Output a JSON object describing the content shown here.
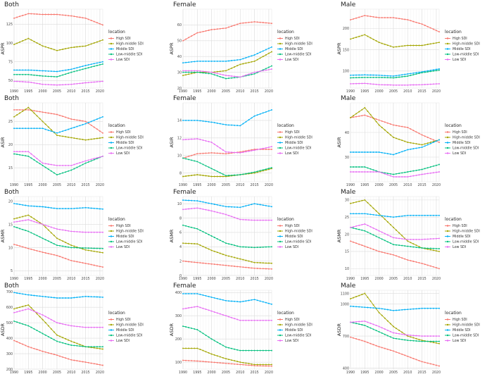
{
  "figure": {
    "legend_title": "location"
  },
  "locations": [
    "High SDI",
    "High-middle SDI",
    "Middle SDI",
    "Low-middle SDI",
    "Low SDI"
  ],
  "colors": {
    "High SDI": "#F8766D",
    "High-middle SDI": "#A3A500",
    "Middle SDI": "#00B0F6",
    "Low-middle SDI": "#00BF7D",
    "Low SDI": "#E76BF3"
  },
  "chart_data": [
    {
      "type": "line",
      "title": "Both",
      "ylabel": "ASPR",
      "xlim": [
        1990,
        2021
      ],
      "ylim": [
        40,
        145
      ],
      "xticks": [
        1990,
        1995,
        2000,
        2005,
        2010,
        2015,
        2020
      ],
      "yticks": [
        50,
        75,
        100,
        125
      ],
      "x": [
        1990,
        1995,
        2000,
        2005,
        2010,
        2015,
        2021
      ],
      "series": [
        {
          "name": "High SDI",
          "values": [
            133,
            139,
            138,
            138,
            136,
            133,
            124
          ]
        },
        {
          "name": "High-middle SDI",
          "values": [
            98,
            106,
            96,
            90,
            94,
            96,
            104
          ]
        },
        {
          "name": "Middle SDI",
          "values": [
            64,
            64,
            63,
            62,
            65,
            70,
            75
          ]
        },
        {
          "name": "Low-middle SDI",
          "values": [
            58,
            58,
            56,
            55,
            61,
            66,
            72
          ]
        },
        {
          "name": "Low SDI",
          "values": [
            49,
            48,
            45,
            44,
            45,
            47,
            49
          ]
        }
      ]
    },
    {
      "type": "line",
      "title": "Female",
      "ylabel": "ASPR",
      "xlim": [
        1990,
        2021
      ],
      "ylim": [
        20,
        70
      ],
      "xticks": [
        1990,
        1995,
        2000,
        2005,
        2010,
        2015,
        2020
      ],
      "yticks": [
        20,
        30,
        40,
        50,
        60
      ],
      "x": [
        1990,
        1995,
        2000,
        2005,
        2010,
        2015,
        2021
      ],
      "series": [
        {
          "name": "High SDI",
          "values": [
            50,
            55,
            57,
            58,
            61,
            62,
            61
          ]
        },
        {
          "name": "High-middle SDI",
          "values": [
            28,
            30,
            30,
            31,
            35,
            37,
            43
          ]
        },
        {
          "name": "Middle SDI",
          "values": [
            36,
            37,
            37,
            37,
            38,
            41,
            46
          ]
        },
        {
          "name": "Low-middle SDI",
          "values": [
            30,
            30,
            29,
            26,
            27,
            29,
            34
          ]
        },
        {
          "name": "Low SDI",
          "values": [
            31,
            31,
            30,
            28,
            27,
            30,
            32
          ]
        }
      ]
    },
    {
      "type": "line",
      "title": "Male",
      "ylabel": "ASPR",
      "xlim": [
        1990,
        2021
      ],
      "ylim": [
        60,
        245
      ],
      "xticks": [
        1990,
        1995,
        2000,
        2005,
        2010,
        2015,
        2020
      ],
      "yticks": [
        100,
        150,
        200
      ],
      "x": [
        1990,
        1995,
        2000,
        2005,
        2010,
        2015,
        2021
      ],
      "series": [
        {
          "name": "High SDI",
          "values": [
            220,
            230,
            225,
            225,
            220,
            210,
            192
          ]
        },
        {
          "name": "High-middle SDI",
          "values": [
            175,
            185,
            167,
            156,
            160,
            160,
            167
          ]
        },
        {
          "name": "Middle SDI",
          "values": [
            90,
            91,
            90,
            88,
            93,
            98,
            105
          ]
        },
        {
          "name": "Low-middle SDI",
          "values": [
            84,
            85,
            85,
            84,
            88,
            96,
            102
          ]
        },
        {
          "name": "Low SDI",
          "values": [
            70,
            71,
            68,
            67,
            67,
            68,
            70
          ]
        }
      ]
    },
    {
      "type": "line",
      "title": "Both",
      "ylabel": "ASIR",
      "xlim": [
        1990,
        2021
      ],
      "ylim": [
        12,
        29
      ],
      "xticks": [
        1990,
        1995,
        2000,
        2005,
        2010,
        2015,
        2020
      ],
      "yticks": [
        15,
        20,
        25
      ],
      "x": [
        1990,
        1995,
        2000,
        2005,
        2010,
        2015,
        2021
      ],
      "series": [
        {
          "name": "High SDI",
          "values": [
            27.5,
            27.5,
            27,
            26.5,
            25.5,
            25,
            22.5
          ]
        },
        {
          "name": "High-middle SDI",
          "values": [
            26,
            28,
            25,
            22,
            21.5,
            21,
            21.5
          ]
        },
        {
          "name": "Middle SDI",
          "values": [
            23.5,
            23.5,
            23.5,
            22.5,
            23.5,
            24.5,
            26
          ]
        },
        {
          "name": "Low-middle SDI",
          "values": [
            18,
            17.5,
            15.5,
            13.5,
            14.5,
            16,
            17.5
          ]
        },
        {
          "name": "Low SDI",
          "values": [
            18.5,
            18.5,
            16,
            15.5,
            15.5,
            16.5,
            17.5
          ]
        }
      ]
    },
    {
      "type": "line",
      "title": "Female",
      "ylabel": "ASIR",
      "xlim": [
        1990,
        2021
      ],
      "ylim": [
        7,
        16
      ],
      "xticks": [
        1990,
        1995,
        2000,
        2005,
        2010,
        2015,
        2020
      ],
      "yticks": [
        8,
        10,
        12,
        14
      ],
      "x": [
        1990,
        1995,
        2000,
        2005,
        2010,
        2015,
        2021
      ],
      "series": [
        {
          "name": "High SDI",
          "values": [
            9.7,
            10.2,
            10.3,
            10.2,
            10.4,
            10.7,
            10.7
          ]
        },
        {
          "name": "High-middle SDI",
          "values": [
            7.6,
            7.8,
            7.6,
            7.6,
            7.8,
            8,
            8.5
          ]
        },
        {
          "name": "Middle SDI",
          "values": [
            14,
            14,
            13.8,
            13.5,
            13.4,
            14.5,
            15.2
          ]
        },
        {
          "name": "Low-middle SDI",
          "values": [
            9.7,
            9.3,
            8.5,
            7.7,
            7.8,
            8.1,
            8.6
          ]
        },
        {
          "name": "Low SDI",
          "values": [
            11.8,
            11.9,
            11.5,
            10.4,
            10.3,
            10.6,
            11
          ]
        }
      ]
    },
    {
      "type": "line",
      "title": "Male",
      "ylabel": "ASIR",
      "xlim": [
        1990,
        2021
      ],
      "ylim": [
        20,
        52
      ],
      "xticks": [
        1990,
        1995,
        2000,
        2005,
        2010,
        2015,
        2020
      ],
      "yticks": [
        30,
        40
      ],
      "x": [
        1990,
        1995,
        2000,
        2005,
        2010,
        2015,
        2021
      ],
      "series": [
        {
          "name": "High SDI",
          "values": [
            46,
            47,
            45,
            43,
            42,
            39,
            36
          ]
        },
        {
          "name": "High-middle SDI",
          "values": [
            46,
            50,
            43,
            38,
            36,
            35,
            37
          ]
        },
        {
          "name": "Middle SDI",
          "values": [
            32,
            32,
            32,
            31,
            33,
            34,
            37
          ]
        },
        {
          "name": "Low-middle SDI",
          "values": [
            26,
            26,
            24,
            23,
            24,
            25,
            27
          ]
        },
        {
          "name": "Low SDI",
          "values": [
            24,
            24,
            24,
            22,
            22,
            23,
            24
          ]
        }
      ]
    },
    {
      "type": "line",
      "title": "Both",
      "ylabel": "ASMR",
      "xlim": [
        1990,
        2021
      ],
      "ylim": [
        4,
        21
      ],
      "xticks": [
        1990,
        1995,
        2000,
        2005,
        2010,
        2015,
        2020
      ],
      "yticks": [
        5,
        10,
        15,
        20
      ],
      "x": [
        1990,
        1995,
        2000,
        2005,
        2010,
        2015,
        2021
      ],
      "series": [
        {
          "name": "High SDI",
          "values": [
            10.7,
            9.8,
            9.0,
            8.3,
            7.2,
            6.6,
            5.8
          ]
        },
        {
          "name": "High-middle SDI",
          "values": [
            16.2,
            17.0,
            15.0,
            12.0,
            10.5,
            9.5,
            8.9
          ]
        },
        {
          "name": "Middle SDI",
          "values": [
            19.5,
            19.0,
            18.8,
            18.4,
            18.4,
            18.6,
            18.3
          ]
        },
        {
          "name": "Low-middle SDI",
          "values": [
            14.5,
            13.5,
            12.0,
            10.5,
            10.0,
            9.9,
            9.8
          ]
        },
        {
          "name": "Low SDI",
          "values": [
            15.5,
            16.0,
            15.0,
            14.0,
            13.5,
            13.3,
            13.3
          ]
        }
      ]
    },
    {
      "type": "line",
      "title": "Female",
      "ylabel": "ASMR",
      "xlim": [
        1990,
        2021
      ],
      "ylim": [
        0,
        11
      ],
      "xticks": [
        1990,
        1995,
        2000,
        2005,
        2010,
        2015,
        2020
      ],
      "yticks": [
        0,
        2,
        4,
        6,
        8,
        10
      ],
      "x": [
        1990,
        1995,
        2000,
        2005,
        2010,
        2015,
        2021
      ],
      "series": [
        {
          "name": "High SDI",
          "values": [
            2.0,
            1.8,
            1.6,
            1.4,
            1.2,
            1.0,
            0.9
          ]
        },
        {
          "name": "High-middle SDI",
          "values": [
            4.5,
            4.4,
            3.5,
            2.8,
            2.3,
            1.8,
            1.7
          ]
        },
        {
          "name": "Middle SDI",
          "values": [
            10.5,
            10.4,
            10.0,
            9.6,
            9.5,
            10.0,
            9.6
          ]
        },
        {
          "name": "Low-middle SDI",
          "values": [
            7.0,
            6.5,
            5.5,
            4.5,
            4.0,
            3.9,
            4.0
          ]
        },
        {
          "name": "Low SDI",
          "values": [
            9.2,
            9.4,
            9.0,
            8.5,
            7.8,
            7.7,
            7.7
          ]
        }
      ]
    },
    {
      "type": "line",
      "title": "Male",
      "ylabel": "ASMR",
      "xlim": [
        1990,
        2021
      ],
      "ylim": [
        8,
        31
      ],
      "xticks": [
        1990,
        1995,
        2000,
        2005,
        2010,
        2015,
        2020
      ],
      "yticks": [
        10,
        15,
        20,
        25,
        30
      ],
      "x": [
        1990,
        1995,
        2000,
        2005,
        2010,
        2015,
        2021
      ],
      "series": [
        {
          "name": "High SDI",
          "values": [
            18,
            16.5,
            15,
            14,
            12.5,
            11.5,
            10
          ]
        },
        {
          "name": "High-middle SDI",
          "values": [
            29,
            30,
            26,
            22,
            18,
            16,
            15
          ]
        },
        {
          "name": "Middle SDI",
          "values": [
            26,
            26,
            25.5,
            25,
            25.5,
            25.5,
            25.5
          ]
        },
        {
          "name": "Low-middle SDI",
          "values": [
            22,
            21,
            19,
            17,
            16.5,
            16,
            15.8
          ]
        },
        {
          "name": "Low SDI",
          "values": [
            22,
            23,
            21,
            19,
            18.5,
            18.5,
            18.8
          ]
        }
      ]
    },
    {
      "type": "line",
      "title": "Both",
      "ylabel": "ASDR",
      "xlim": [
        1990,
        2021
      ],
      "ylim": [
        200,
        710
      ],
      "xticks": [
        1990,
        1995,
        2000,
        2005,
        2010,
        2015,
        2020
      ],
      "yticks": [
        200,
        300,
        400,
        500,
        600,
        700
      ],
      "x": [
        1990,
        1995,
        2000,
        2005,
        2010,
        2015,
        2021
      ],
      "series": [
        {
          "name": "High SDI",
          "values": [
            385,
            345,
            315,
            290,
            260,
            245,
            225
          ]
        },
        {
          "name": "High-middle SDI",
          "values": [
            590,
            615,
            520,
            420,
            380,
            345,
            330
          ]
        },
        {
          "name": "Middle SDI",
          "values": [
            695,
            680,
            670,
            660,
            660,
            670,
            665
          ]
        },
        {
          "name": "Low-middle SDI",
          "values": [
            510,
            480,
            430,
            380,
            355,
            345,
            345
          ]
        },
        {
          "name": "Low SDI",
          "values": [
            565,
            590,
            550,
            500,
            480,
            470,
            470
          ]
        }
      ]
    },
    {
      "type": "line",
      "title": "Female",
      "ylabel": "ASDR",
      "xlim": [
        1990,
        2021
      ],
      "ylim": [
        70,
        410
      ],
      "xticks": [
        1990,
        1995,
        2000,
        2005,
        2010,
        2015,
        2020
      ],
      "yticks": [
        100,
        200,
        300,
        400
      ],
      "x": [
        1990,
        1995,
        2000,
        2005,
        2010,
        2015,
        2021
      ],
      "series": [
        {
          "name": "High SDI",
          "values": [
            108,
            105,
            100,
            95,
            90,
            85,
            83
          ]
        },
        {
          "name": "High-middle SDI",
          "values": [
            160,
            160,
            135,
            115,
            100,
            90,
            90
          ]
        },
        {
          "name": "Middle SDI",
          "values": [
            395,
            395,
            380,
            365,
            360,
            370,
            350
          ]
        },
        {
          "name": "Low-middle SDI",
          "values": [
            255,
            240,
            200,
            165,
            150,
            150,
            150
          ]
        },
        {
          "name": "Low SDI",
          "values": [
            330,
            340,
            320,
            300,
            280,
            280,
            280
          ]
        }
      ]
    },
    {
      "type": "line",
      "title": "Male",
      "ylabel": "ASDR",
      "xlim": [
        1990,
        2021
      ],
      "ylim": [
        390,
        1130
      ],
      "xticks": [
        1990,
        1995,
        2000,
        2005,
        2010,
        2015,
        2020
      ],
      "yticks": [
        400,
        700,
        1000,
        1100
      ],
      "x": [
        1990,
        1995,
        2000,
        2005,
        2010,
        2015,
        2021
      ],
      "series": [
        {
          "name": "High SDI",
          "values": [
            690,
            650,
            600,
            560,
            510,
            460,
            420
          ]
        },
        {
          "name": "High-middle SDI",
          "values": [
            1050,
            1100,
            920,
            790,
            700,
            660,
            630
          ]
        },
        {
          "name": "Middle SDI",
          "values": [
            980,
            970,
            960,
            940,
            950,
            960,
            960
          ]
        },
        {
          "name": "Low-middle SDI",
          "values": [
            830,
            800,
            740,
            680,
            660,
            650,
            650
          ]
        },
        {
          "name": "Low SDI",
          "values": [
            830,
            840,
            790,
            730,
            710,
            700,
            700
          ]
        }
      ]
    }
  ]
}
